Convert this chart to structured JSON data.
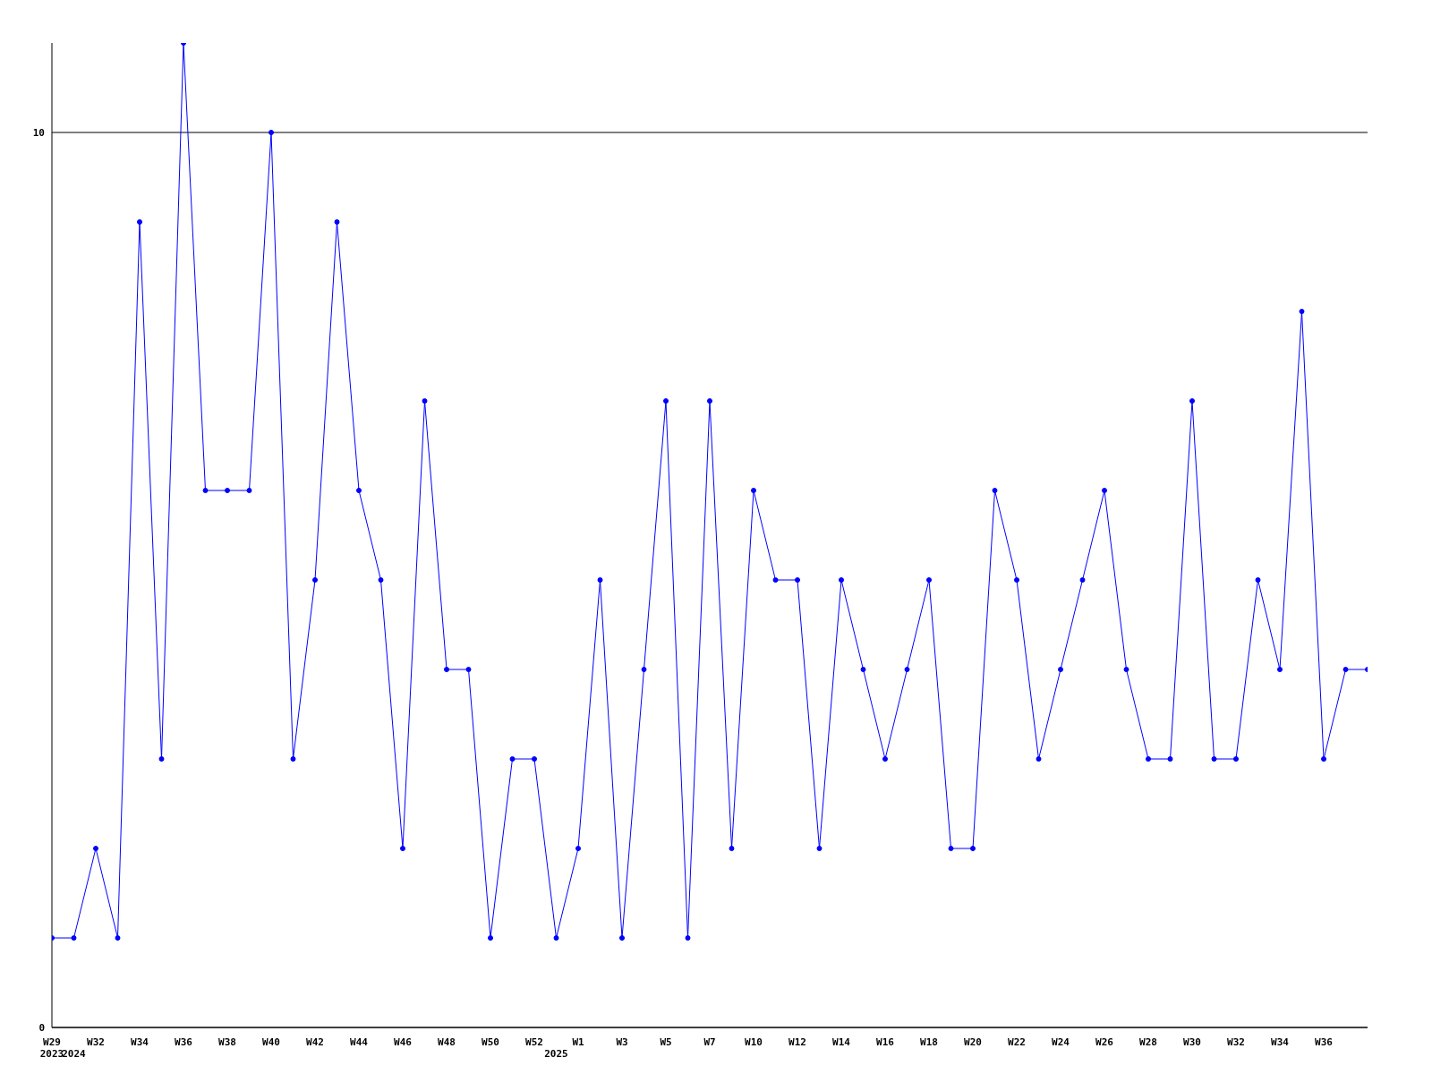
{
  "chart_data": {
    "type": "line",
    "categories": [
      "W29\n2023",
      "\n2024",
      "W32",
      null,
      "W34",
      null,
      "W36",
      null,
      "W38",
      null,
      "W40",
      null,
      "W42",
      null,
      "W44",
      null,
      "W46",
      null,
      "W48",
      null,
      "W50",
      null,
      "W52",
      "\n2025",
      "W1",
      null,
      "W3",
      null,
      "W5",
      null,
      "W7",
      null,
      "W10",
      null,
      "W12",
      null,
      "W14",
      null,
      "W16",
      null,
      "W18",
      null,
      "W20",
      null,
      "W22",
      null,
      "W24",
      null,
      "W26",
      null,
      "W28",
      null,
      "W30",
      null,
      "W32",
      null,
      "W34",
      null,
      "W36",
      null,
      null
    ],
    "series": [
      {
        "color": "#0000ff",
        "values": [
          1,
          1,
          2,
          1,
          9,
          3,
          11,
          6,
          6,
          6,
          10,
          3,
          5,
          9,
          6,
          5,
          2,
          7,
          4,
          4,
          1,
          3,
          3,
          1,
          2,
          5,
          1,
          4,
          7,
          1,
          7,
          2,
          6,
          5,
          5,
          2,
          5,
          4,
          3,
          4,
          5,
          2,
          2,
          6,
          5,
          3,
          4,
          5,
          6,
          4,
          3,
          3,
          7,
          3,
          3,
          5,
          4,
          8,
          3,
          4,
          4
        ]
      }
    ],
    "ylim": [
      0,
      11
    ],
    "yticks": [
      0,
      10
    ],
    "grid": "y",
    "legend": false,
    "marker": "circle",
    "line_style": "solid"
  }
}
